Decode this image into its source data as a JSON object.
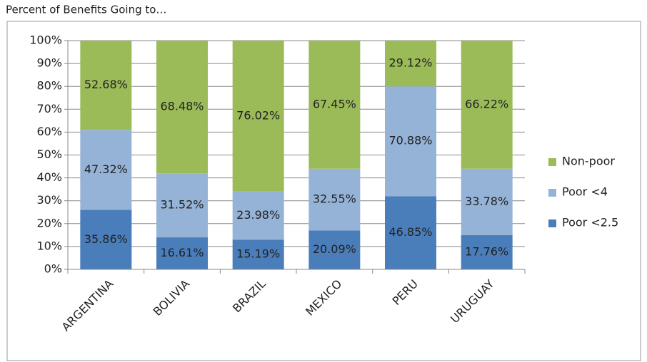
{
  "chart_data": {
    "type": "stacked_bar",
    "subtitle": "Percent of Benefits Going to…",
    "categories": [
      "ARGENTINA",
      "BOLIVIA",
      "BRAZIL",
      "MEXICO",
      "PERU",
      "URUGUAY"
    ],
    "series": [
      {
        "name": "Poor <2.5",
        "color": "#4a7ebb",
        "values": [
          26,
          14,
          13,
          17,
          32,
          15
        ],
        "annotations": [
          "35.86%",
          "16.61%",
          "15.19%",
          "20.09%",
          "46.85%",
          "17.76%"
        ]
      },
      {
        "name": "Poor <4",
        "color": "#95b3d7",
        "values": [
          35,
          28,
          21,
          27,
          48,
          29
        ],
        "annotations": [
          "47.32%",
          "31.52%",
          "23.98%",
          "32.55%",
          "70.88%",
          "33.78%"
        ]
      },
      {
        "name": "Non-poor",
        "color": "#9bbb59",
        "values": [
          39,
          58,
          66,
          56,
          20,
          56
        ],
        "annotations": [
          "52.68%",
          "68.48%",
          "76.02%",
          "67.45%",
          "29.12%",
          "66.22%"
        ]
      }
    ],
    "ylim": [
      0,
      100
    ],
    "yticks": [
      {
        "value": 0,
        "label": "0%"
      },
      {
        "value": 10,
        "label": "10%"
      },
      {
        "value": 20,
        "label": "20%"
      },
      {
        "value": 30,
        "label": "30%"
      },
      {
        "value": 40,
        "label": "40%"
      },
      {
        "value": 50,
        "label": "50%"
      },
      {
        "value": 60,
        "label": "60%"
      },
      {
        "value": 70,
        "label": "70%"
      },
      {
        "value": 80,
        "label": "80%"
      },
      {
        "value": 90,
        "label": "90%"
      },
      {
        "value": 100,
        "label": "100%"
      }
    ],
    "grid": true,
    "legend": "right"
  }
}
